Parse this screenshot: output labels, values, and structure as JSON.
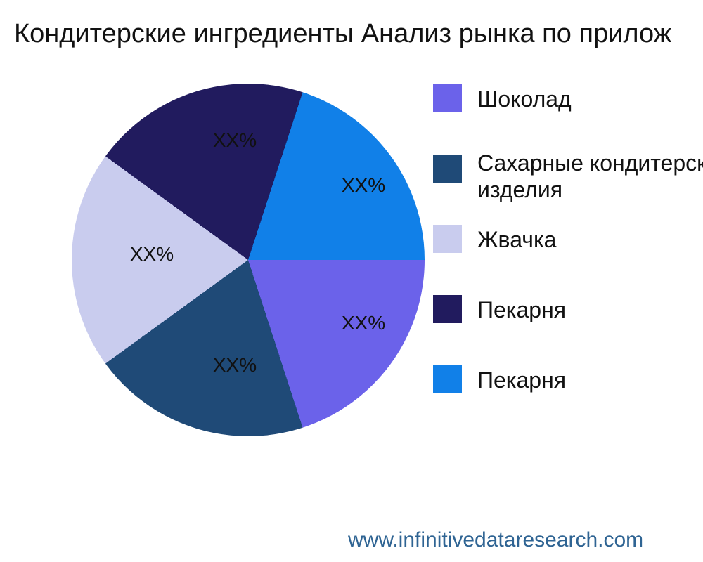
{
  "title": "Кондитерские ингредиенты Анализ рынка по прилож",
  "chart_data": {
    "type": "pie",
    "title": "Кондитерские ингредиенты Анализ рынка по прилож",
    "start_angle_deg": 0,
    "direction": "clockwise",
    "legend_position": "right",
    "slices": [
      {
        "label": "Шоколад",
        "value": 20,
        "display_pct": "XX%",
        "color": "#6B62EA"
      },
      {
        "label": "Сахарные кондитерские изделия",
        "label_lines": [
          "Сахарные кондитерские",
          "изделия"
        ],
        "value": 20,
        "display_pct": "XX%",
        "color": "#1F4A77"
      },
      {
        "label": "Жвачка",
        "value": 20,
        "display_pct": "XX%",
        "color": "#C9CCEE"
      },
      {
        "label": "Пекарня",
        "value": 20,
        "display_pct": "XX%",
        "color": "#211B5E"
      },
      {
        "label": "Пекарня",
        "value": 20,
        "display_pct": "XX%",
        "color": "#1180E8"
      }
    ]
  },
  "footer": {
    "url": "www.infinitivedataresearch.com",
    "color": "#2F6493"
  }
}
